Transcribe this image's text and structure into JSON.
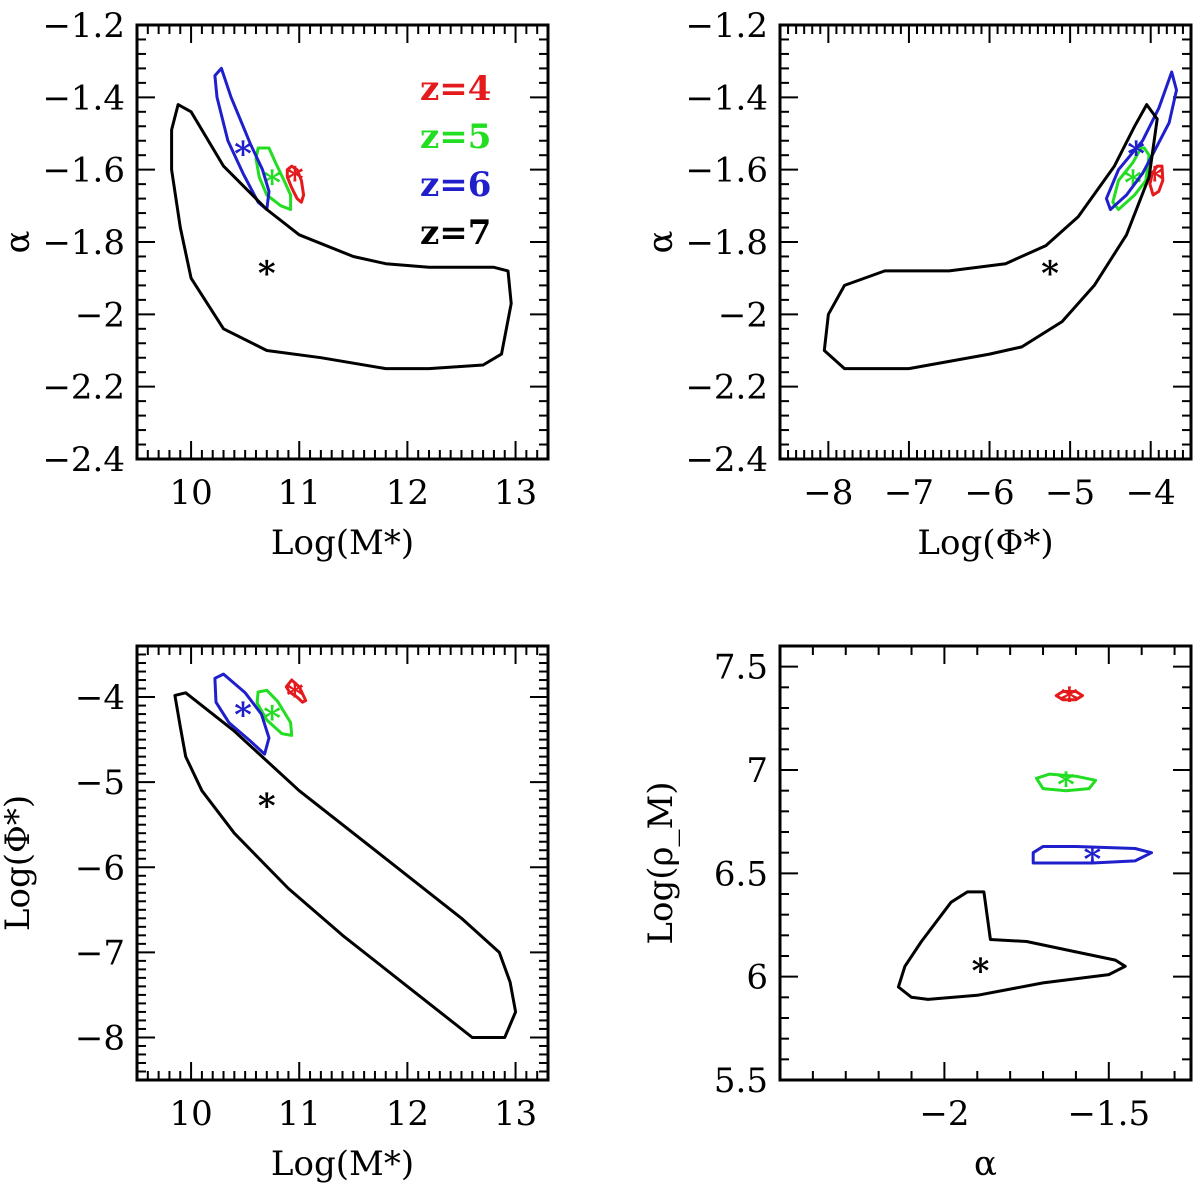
{
  "colors": {
    "z4": "#e41a1c",
    "z5": "#22dd22",
    "z6": "#1f1fcc",
    "z7": "#000000"
  },
  "chart_data": [
    {
      "type": "scatter",
      "id": "mstar-alpha",
      "xlabel": "Log(M*)",
      "ylabel": "α",
      "xlim": [
        9.5,
        13.3
      ],
      "ylim": [
        -2.4,
        -1.2
      ],
      "xticks": [
        10,
        11,
        12,
        13
      ],
      "yticks": [
        -2.4,
        -2.2,
        -2.0,
        -1.8,
        -1.6,
        -1.4,
        -1.2
      ],
      "xtick_labels": [
        "10",
        "11",
        "12",
        "13"
      ],
      "ytick_labels": [
        "−2.4",
        "−2.2",
        "−2",
        "−1.8",
        "−1.6",
        "−1.4",
        "−1.2"
      ],
      "legend": [
        "z=4",
        "z=5",
        "z=6",
        "z=7"
      ],
      "series": [
        {
          "name": "z=4",
          "color_key": "z4",
          "best_fit": [
            10.96,
            -1.62
          ],
          "contour": [
            [
              10.89,
              -1.6
            ],
            [
              10.93,
              -1.59
            ],
            [
              10.98,
              -1.6
            ],
            [
              11.02,
              -1.63
            ],
            [
              11.04,
              -1.67
            ],
            [
              11.02,
              -1.69
            ],
            [
              10.98,
              -1.68
            ],
            [
              10.93,
              -1.65
            ],
            [
              10.89,
              -1.62
            ]
          ]
        },
        {
          "name": "z=5",
          "color_key": "z5",
          "best_fit": [
            10.75,
            -1.63
          ],
          "contour": [
            [
              10.62,
              -1.54
            ],
            [
              10.72,
              -1.54
            ],
            [
              10.78,
              -1.58
            ],
            [
              10.86,
              -1.63
            ],
            [
              10.92,
              -1.67
            ],
            [
              10.92,
              -1.71
            ],
            [
              10.83,
              -1.7
            ],
            [
              10.7,
              -1.67
            ],
            [
              10.63,
              -1.62
            ],
            [
              10.6,
              -1.57
            ]
          ]
        },
        {
          "name": "z=6",
          "color_key": "z6",
          "best_fit": [
            10.48,
            -1.55
          ],
          "contour": [
            [
              10.22,
              -1.34
            ],
            [
              10.28,
              -1.32
            ],
            [
              10.37,
              -1.4
            ],
            [
              10.55,
              -1.53
            ],
            [
              10.66,
              -1.6
            ],
            [
              10.72,
              -1.66
            ],
            [
              10.7,
              -1.71
            ],
            [
              10.62,
              -1.69
            ],
            [
              10.48,
              -1.61
            ],
            [
              10.34,
              -1.52
            ],
            [
              10.24,
              -1.4
            ]
          ]
        },
        {
          "name": "z=7",
          "color_key": "z7",
          "best_fit": [
            10.7,
            -1.88
          ],
          "contour": [
            [
              9.82,
              -1.49
            ],
            [
              9.88,
              -1.42
            ],
            [
              10.0,
              -1.44
            ],
            [
              10.3,
              -1.59
            ],
            [
              10.7,
              -1.71
            ],
            [
              11.0,
              -1.78
            ],
            [
              11.5,
              -1.84
            ],
            [
              11.8,
              -1.86
            ],
            [
              12.2,
              -1.87
            ],
            [
              12.8,
              -1.87
            ],
            [
              12.93,
              -1.88
            ],
            [
              12.96,
              -1.97
            ],
            [
              12.87,
              -2.11
            ],
            [
              12.7,
              -2.14
            ],
            [
              12.2,
              -2.15
            ],
            [
              11.8,
              -2.15
            ],
            [
              11.2,
              -2.12
            ],
            [
              10.7,
              -2.1
            ],
            [
              10.3,
              -2.04
            ],
            [
              10.0,
              -1.9
            ],
            [
              9.9,
              -1.76
            ],
            [
              9.82,
              -1.6
            ]
          ]
        }
      ]
    },
    {
      "type": "scatter",
      "id": "phistar-alpha",
      "xlabel": "Log(Φ*)",
      "ylabel": "α",
      "xlim": [
        -8.6,
        -3.5
      ],
      "ylim": [
        -2.4,
        -1.2
      ],
      "xticks": [
        -8,
        -7,
        -6,
        -5,
        -4
      ],
      "yticks": [
        -2.4,
        -2.2,
        -2.0,
        -1.8,
        -1.6,
        -1.4,
        -1.2
      ],
      "xtick_labels": [
        "−8",
        "−7",
        "−6",
        "−5",
        "−4"
      ],
      "ytick_labels": [
        "−2.4",
        "−2.2",
        "−2",
        "−1.8",
        "−1.6",
        "−1.4",
        "−1.2"
      ],
      "series": [
        {
          "name": "z=4",
          "color_key": "z4",
          "best_fit": [
            -3.95,
            -1.62
          ],
          "contour": [
            [
              -3.92,
              -1.59
            ],
            [
              -3.86,
              -1.59
            ],
            [
              -3.85,
              -1.63
            ],
            [
              -3.9,
              -1.66
            ],
            [
              -3.97,
              -1.67
            ],
            [
              -4.01,
              -1.64
            ],
            [
              -3.98,
              -1.61
            ]
          ]
        },
        {
          "name": "z=5",
          "color_key": "z5",
          "best_fit": [
            -4.22,
            -1.63
          ],
          "contour": [
            [
              -4.08,
              -1.54
            ],
            [
              -4.02,
              -1.56
            ],
            [
              -4.06,
              -1.63
            ],
            [
              -4.2,
              -1.67
            ],
            [
              -4.4,
              -1.71
            ],
            [
              -4.47,
              -1.69
            ],
            [
              -4.4,
              -1.63
            ],
            [
              -4.22,
              -1.58
            ],
            [
              -4.12,
              -1.54
            ]
          ]
        },
        {
          "name": "z=6",
          "color_key": "z6",
          "best_fit": [
            -4.18,
            -1.55
          ],
          "contour": [
            [
              -3.74,
              -1.33
            ],
            [
              -3.68,
              -1.38
            ],
            [
              -3.77,
              -1.47
            ],
            [
              -3.98,
              -1.56
            ],
            [
              -4.1,
              -1.61
            ],
            [
              -4.3,
              -1.67
            ],
            [
              -4.5,
              -1.71
            ],
            [
              -4.55,
              -1.68
            ],
            [
              -4.4,
              -1.6
            ],
            [
              -4.1,
              -1.52
            ],
            [
              -3.9,
              -1.43
            ]
          ]
        },
        {
          "name": "z=7",
          "color_key": "z7",
          "best_fit": [
            -5.25,
            -1.88
          ],
          "contour": [
            [
              -4.05,
              -1.42
            ],
            [
              -3.92,
              -1.46
            ],
            [
              -4.02,
              -1.62
            ],
            [
              -4.3,
              -1.78
            ],
            [
              -4.7,
              -1.92
            ],
            [
              -5.1,
              -2.02
            ],
            [
              -5.6,
              -2.09
            ],
            [
              -6.0,
              -2.11
            ],
            [
              -7.0,
              -2.15
            ],
            [
              -7.8,
              -2.15
            ],
            [
              -8.05,
              -2.1
            ],
            [
              -8.0,
              -2.0
            ],
            [
              -7.8,
              -1.92
            ],
            [
              -7.3,
              -1.88
            ],
            [
              -6.5,
              -1.88
            ],
            [
              -5.8,
              -1.86
            ],
            [
              -5.3,
              -1.81
            ],
            [
              -4.9,
              -1.73
            ],
            [
              -4.45,
              -1.59
            ],
            [
              -4.2,
              -1.48
            ]
          ]
        }
      ]
    },
    {
      "type": "scatter",
      "id": "mstar-phistar",
      "xlabel": "Log(M*)",
      "ylabel": "Log(Φ*)",
      "xlim": [
        9.5,
        13.3
      ],
      "ylim": [
        -8.5,
        -3.4
      ],
      "xticks": [
        10,
        11,
        12,
        13
      ],
      "yticks": [
        -8,
        -7,
        -6,
        -5,
        -4
      ],
      "xtick_labels": [
        "10",
        "11",
        "12",
        "13"
      ],
      "ytick_labels": [
        "−8",
        "−7",
        "−6",
        "−5",
        "−4"
      ],
      "series": [
        {
          "name": "z=4",
          "color_key": "z4",
          "best_fit": [
            10.96,
            -3.95
          ],
          "contour": [
            [
              10.88,
              -3.88
            ],
            [
              10.93,
              -3.8
            ],
            [
              11.0,
              -3.88
            ],
            [
              11.06,
              -4.04
            ],
            [
              11.03,
              -4.06
            ],
            [
              10.98,
              -4.0
            ],
            [
              10.91,
              -3.94
            ]
          ]
        },
        {
          "name": "z=5",
          "color_key": "z5",
          "best_fit": [
            10.75,
            -4.22
          ],
          "contour": [
            [
              10.62,
              -3.94
            ],
            [
              10.7,
              -3.92
            ],
            [
              10.8,
              -4.05
            ],
            [
              10.92,
              -4.3
            ],
            [
              10.93,
              -4.45
            ],
            [
              10.84,
              -4.43
            ],
            [
              10.7,
              -4.27
            ],
            [
              10.61,
              -4.07
            ]
          ]
        },
        {
          "name": "z=6",
          "color_key": "z6",
          "best_fit": [
            10.48,
            -4.18
          ],
          "contour": [
            [
              10.22,
              -3.78
            ],
            [
              10.3,
              -3.73
            ],
            [
              10.5,
              -3.95
            ],
            [
              10.65,
              -4.2
            ],
            [
              10.72,
              -4.48
            ],
            [
              10.68,
              -4.67
            ],
            [
              10.55,
              -4.52
            ],
            [
              10.35,
              -4.3
            ],
            [
              10.23,
              -4.06
            ]
          ]
        },
        {
          "name": "z=7",
          "color_key": "z7",
          "best_fit": [
            10.7,
            -5.25
          ],
          "contour": [
            [
              9.85,
              -3.98
            ],
            [
              9.95,
              -3.95
            ],
            [
              10.4,
              -4.4
            ],
            [
              11.0,
              -5.1
            ],
            [
              11.8,
              -5.9
            ],
            [
              12.5,
              -6.6
            ],
            [
              12.85,
              -7.0
            ],
            [
              12.95,
              -7.35
            ],
            [
              13.0,
              -7.7
            ],
            [
              12.9,
              -8.0
            ],
            [
              12.6,
              -8.0
            ],
            [
              12.0,
              -7.4
            ],
            [
              11.4,
              -6.8
            ],
            [
              10.9,
              -6.25
            ],
            [
              10.4,
              -5.6
            ],
            [
              10.1,
              -5.1
            ],
            [
              9.95,
              -4.7
            ],
            [
              9.9,
              -4.35
            ]
          ]
        }
      ]
    },
    {
      "type": "scatter",
      "id": "alpha-rhom",
      "xlabel": "α",
      "ylabel": "Log(ρ_M)",
      "xlim": [
        -2.5,
        -1.25
      ],
      "ylim": [
        5.5,
        7.6
      ],
      "xticks": [
        -2.0,
        -1.5
      ],
      "yticks": [
        5.5,
        6.0,
        6.5,
        7.0,
        7.5
      ],
      "xtick_labels": [
        "−2",
        "−1.5"
      ],
      "ytick_labels": [
        "5.5",
        "6",
        "6.5",
        "7",
        "7.5"
      ],
      "series": [
        {
          "name": "z=4",
          "color_key": "z4",
          "best_fit": [
            -1.62,
            7.35
          ],
          "contour": [
            [
              -1.66,
              7.36
            ],
            [
              -1.64,
              7.38
            ],
            [
              -1.6,
              7.38
            ],
            [
              -1.58,
              7.36
            ],
            [
              -1.6,
              7.34
            ],
            [
              -1.64,
              7.34
            ]
          ]
        },
        {
          "name": "z=5",
          "color_key": "z5",
          "best_fit": [
            -1.63,
            6.94
          ],
          "contour": [
            [
              -1.72,
              6.96
            ],
            [
              -1.68,
              6.98
            ],
            [
              -1.6,
              6.97
            ],
            [
              -1.54,
              6.95
            ],
            [
              -1.56,
              6.91
            ],
            [
              -1.63,
              6.9
            ],
            [
              -1.7,
              6.91
            ]
          ]
        },
        {
          "name": "z=6",
          "color_key": "z6",
          "best_fit": [
            -1.55,
            6.58
          ],
          "contour": [
            [
              -1.73,
              6.6
            ],
            [
              -1.7,
              6.63
            ],
            [
              -1.6,
              6.63
            ],
            [
              -1.42,
              6.62
            ],
            [
              -1.37,
              6.6
            ],
            [
              -1.42,
              6.56
            ],
            [
              -1.55,
              6.55
            ],
            [
              -1.73,
              6.55
            ]
          ]
        },
        {
          "name": "z=7",
          "color_key": "z7",
          "best_fit": [
            -1.89,
            6.04
          ],
          "contour": [
            [
              -2.12,
              6.05
            ],
            [
              -2.07,
              6.17
            ],
            [
              -1.98,
              6.36
            ],
            [
              -1.93,
              6.41
            ],
            [
              -1.88,
              6.41
            ],
            [
              -1.86,
              6.18
            ],
            [
              -1.75,
              6.17
            ],
            [
              -1.6,
              6.12
            ],
            [
              -1.48,
              6.08
            ],
            [
              -1.45,
              6.05
            ],
            [
              -1.5,
              6.01
            ],
            [
              -1.7,
              5.97
            ],
            [
              -1.9,
              5.91
            ],
            [
              -2.05,
              5.89
            ],
            [
              -2.1,
              5.9
            ],
            [
              -2.14,
              5.95
            ]
          ]
        }
      ]
    }
  ]
}
